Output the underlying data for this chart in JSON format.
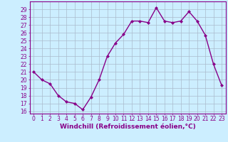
{
  "x": [
    0,
    1,
    2,
    3,
    4,
    5,
    6,
    7,
    8,
    9,
    10,
    11,
    12,
    13,
    14,
    15,
    16,
    17,
    18,
    19,
    20,
    21,
    22,
    23
  ],
  "y": [
    21,
    20,
    19.5,
    18,
    17.2,
    17,
    16.2,
    17.8,
    20,
    23,
    24.7,
    25.8,
    27.5,
    27.5,
    27.3,
    29.2,
    27.5,
    27.3,
    27.5,
    28.7,
    27.5,
    25.7,
    22,
    19.3
  ],
  "line_color": "#880088",
  "marker": "D",
  "markersize": 2,
  "linewidth": 1.0,
  "xlabel": "Windchill (Refroidissement éolien,°C)",
  "xlabel_fontsize": 6.5,
  "bg_color": "#cceeff",
  "grid_color": "#aabbcc",
  "ylim_min": 15.7,
  "ylim_max": 30.0,
  "xlim_min": -0.5,
  "xlim_max": 23.5,
  "yticks": [
    16,
    17,
    18,
    19,
    20,
    21,
    22,
    23,
    24,
    25,
    26,
    27,
    28,
    29
  ],
  "xticks": [
    0,
    1,
    2,
    3,
    4,
    5,
    6,
    7,
    8,
    9,
    10,
    11,
    12,
    13,
    14,
    15,
    16,
    17,
    18,
    19,
    20,
    21,
    22,
    23
  ],
  "tick_fontsize": 5.5,
  "tick_color": "#880088",
  "spine_color": "#880088"
}
